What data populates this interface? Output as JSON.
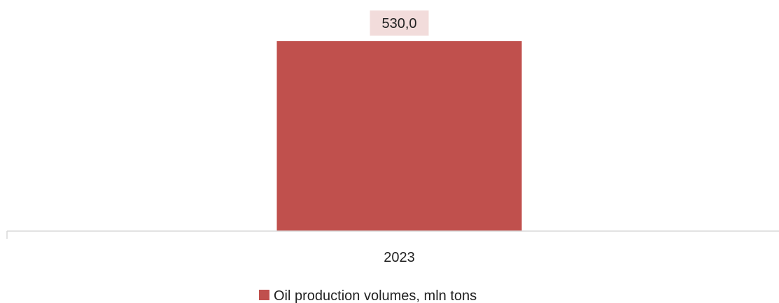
{
  "chart_data": {
    "type": "bar",
    "categories": [
      "2023"
    ],
    "series": [
      {
        "name": "Oil production volumes, mln tons",
        "values": [
          530.0
        ],
        "value_labels": [
          "530,0"
        ],
        "color": "#C0504D"
      }
    ],
    "data_label_background": "#F2DCDB",
    "axis_color": "#D9D9D9",
    "ylim": [
      0,
      530
    ],
    "grid": false,
    "legend": "bottom"
  }
}
